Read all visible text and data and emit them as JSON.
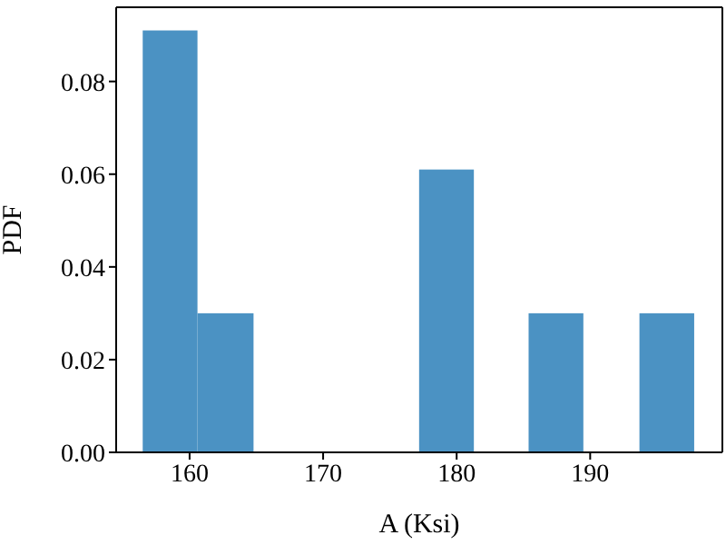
{
  "chart_data": {
    "type": "histogram",
    "xlabel": "A (Ksi)",
    "ylabel": "PDF",
    "bins": [
      156.5,
      160.6,
      164.8,
      177.2,
      181.3,
      185.4,
      189.5,
      193.7,
      197.8
    ],
    "values": [
      0.091,
      0.03,
      0,
      0.061,
      0,
      0.03,
      0,
      0.03
    ],
    "color": "#4b92c3",
    "xlim": [
      154.5,
      199.9
    ],
    "xticks": [
      160,
      170,
      180,
      190
    ],
    "ylim": [
      0,
      0.096
    ],
    "yticks": [
      {
        "value": 0,
        "label": "0.00"
      },
      {
        "value": 0.02,
        "label": "0.02"
      },
      {
        "value": 0.04,
        "label": "0.04"
      },
      {
        "value": 0.06,
        "label": "0.06"
      },
      {
        "value": 0.08,
        "label": "0.08"
      }
    ],
    "grid": false,
    "legend": false
  }
}
